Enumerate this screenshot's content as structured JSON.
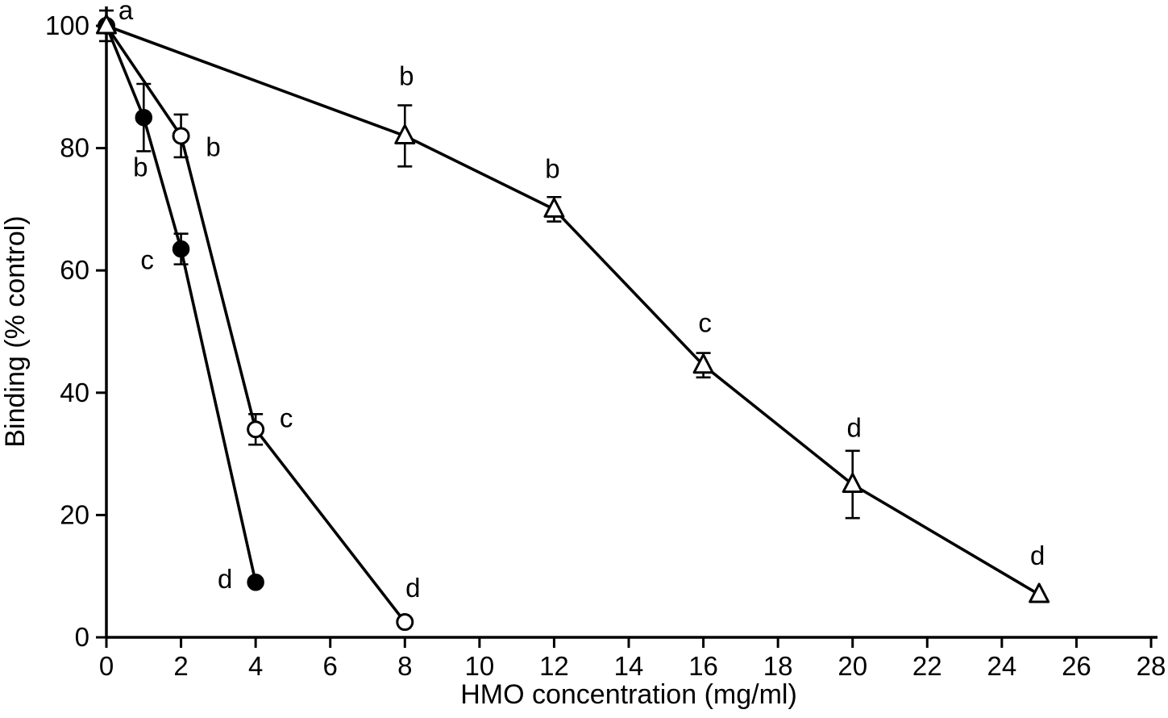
{
  "chart_data": {
    "type": "line",
    "title": "",
    "xlabel": "HMO concentration (mg/ml)",
    "ylabel": "Binding (% control)",
    "xlim": [
      0,
      28
    ],
    "ylim": [
      0,
      100
    ],
    "xticks": [
      0,
      2,
      4,
      6,
      8,
      10,
      12,
      14,
      16,
      18,
      20,
      22,
      24,
      26,
      28
    ],
    "yticks": [
      0,
      20,
      40,
      60,
      80,
      100
    ],
    "grid": false,
    "legend": "none",
    "annotation_letters": [
      "a",
      "b",
      "c",
      "d"
    ],
    "series": [
      {
        "name": "open-circle-series",
        "marker": "circle-open",
        "points": [
          {
            "x": 0,
            "y": 100,
            "err": 0,
            "label": "",
            "label_offset": [
              0,
              0
            ]
          },
          {
            "x": 2,
            "y": 82,
            "err": 3.5,
            "label": "b",
            "label_offset": [
              40,
              14
            ]
          },
          {
            "x": 4,
            "y": 34,
            "err": 2.5,
            "label": "c",
            "label_offset": [
              38,
              -14
            ]
          },
          {
            "x": 8,
            "y": 2.5,
            "err": 0,
            "label": "d",
            "label_offset": [
              10,
              -42
            ]
          }
        ]
      },
      {
        "name": "filled-circle-series",
        "marker": "circle-filled",
        "points": [
          {
            "x": 0,
            "y": 100,
            "err": 2.5,
            "label": "a",
            "label_offset": [
              24,
              -19
            ]
          },
          {
            "x": 1,
            "y": 85,
            "err": 5.5,
            "label": "b",
            "label_offset": [
              -4,
              62
            ]
          },
          {
            "x": 2,
            "y": 63.5,
            "err": 2.5,
            "label": "c",
            "label_offset": [
              -42,
              14
            ]
          },
          {
            "x": 4,
            "y": 9,
            "err": 0,
            "label": "d",
            "label_offset": [
              -38,
              -4
            ]
          }
        ]
      },
      {
        "name": "open-triangle-series",
        "marker": "triangle-open",
        "points": [
          {
            "x": 0,
            "y": 100,
            "err": 0,
            "label": "",
            "label_offset": [
              0,
              0
            ]
          },
          {
            "x": 8,
            "y": 82,
            "err": 5,
            "label": "b",
            "label_offset": [
              2,
              -74
            ]
          },
          {
            "x": 12,
            "y": 70,
            "err": 2,
            "label": "b",
            "label_offset": [
              -2,
              -50
            ]
          },
          {
            "x": 16,
            "y": 44.5,
            "err": 2,
            "label": "c",
            "label_offset": [
              2,
              -52
            ]
          },
          {
            "x": 20,
            "y": 25,
            "err": 5.5,
            "label": "d",
            "label_offset": [
              2,
              -70
            ]
          },
          {
            "x": 25,
            "y": 7,
            "err": 0,
            "label": "d",
            "label_offset": [
              -2,
              -48
            ]
          }
        ]
      }
    ]
  }
}
